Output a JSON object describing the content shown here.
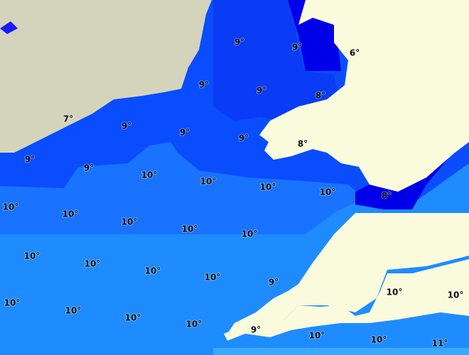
{
  "labels": [
    "9°",
    "9°",
    "6°",
    "9°",
    "9°",
    "8°",
    "7°",
    "9°",
    "9°",
    "9°",
    "8°",
    "9°",
    "9°",
    "10°",
    "10°",
    "10°",
    "10°",
    "8°",
    "10°",
    "10°",
    "10°",
    "10°",
    "10°",
    "10°",
    "10°",
    "10°",
    "10°",
    "9°",
    "10°",
    "10°",
    "10°",
    "10°",
    "10°",
    "10°",
    "9°",
    "10°",
    "10°",
    "11°"
  ]
}
